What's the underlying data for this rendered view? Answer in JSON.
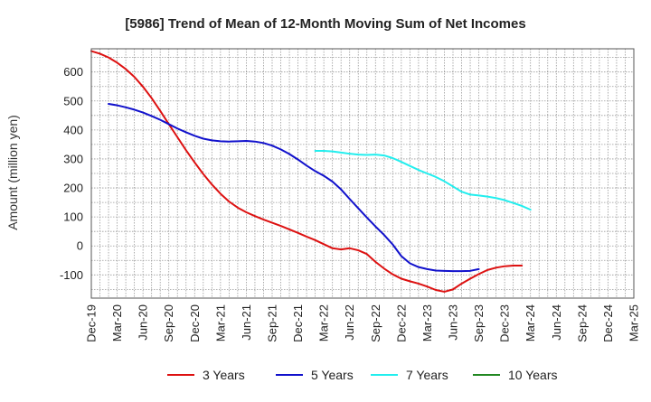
{
  "chart_data": {
    "type": "line",
    "title": "[5986]  Trend of Mean of 12-Month Moving Sum of Net Incomes",
    "xlabel": "",
    "ylabel": "Amount (million yen)",
    "ylim": [
      -180,
      680
    ],
    "yticks": [
      -100,
      0,
      100,
      200,
      300,
      400,
      500,
      600
    ],
    "xlim": [
      0,
      63
    ],
    "xticks": [
      {
        "i": 0,
        "label": "Dec-19"
      },
      {
        "i": 3,
        "label": "Mar-20"
      },
      {
        "i": 6,
        "label": "Jun-20"
      },
      {
        "i": 9,
        "label": "Sep-20"
      },
      {
        "i": 12,
        "label": "Dec-20"
      },
      {
        "i": 15,
        "label": "Mar-21"
      },
      {
        "i": 18,
        "label": "Jun-21"
      },
      {
        "i": 21,
        "label": "Sep-21"
      },
      {
        "i": 24,
        "label": "Dec-21"
      },
      {
        "i": 27,
        "label": "Mar-22"
      },
      {
        "i": 30,
        "label": "Jun-22"
      },
      {
        "i": 33,
        "label": "Sep-22"
      },
      {
        "i": 36,
        "label": "Dec-22"
      },
      {
        "i": 39,
        "label": "Mar-23"
      },
      {
        "i": 42,
        "label": "Jun-23"
      },
      {
        "i": 45,
        "label": "Sep-23"
      },
      {
        "i": 48,
        "label": "Dec-23"
      },
      {
        "i": 51,
        "label": "Mar-24"
      },
      {
        "i": 54,
        "label": "Jun-24"
      },
      {
        "i": 57,
        "label": "Sep-24"
      },
      {
        "i": 60,
        "label": "Dec-24"
      },
      {
        "i": 63,
        "label": "Mar-25"
      }
    ],
    "grid": true,
    "legend_position": "bottom",
    "series": [
      {
        "name": "3 Years",
        "color": "#dd1111",
        "start_index": 0,
        "values": [
          672,
          663,
          650,
          632,
          610,
          583,
          549,
          510,
          466,
          420,
          375,
          330,
          288,
          248,
          212,
          180,
          153,
          132,
          116,
          103,
          91,
          80,
          69,
          57,
          45,
          32,
          20,
          6,
          -8,
          -12,
          -8,
          -15,
          -28,
          -55,
          -78,
          -98,
          -113,
          -122,
          -130,
          -140,
          -152,
          -158,
          -150,
          -130,
          -113,
          -97,
          -83,
          -75,
          -70,
          -68,
          -68
        ]
      },
      {
        "name": "5 Years",
        "color": "#1111cc",
        "start_index": 2,
        "values": [
          490,
          485,
          478,
          470,
          460,
          448,
          435,
          420,
          405,
          392,
          380,
          370,
          364,
          361,
          360,
          361,
          362,
          360,
          355,
          346,
          333,
          317,
          298,
          277,
          258,
          242,
          222,
          195,
          162,
          130,
          98,
          67,
          38,
          5,
          -35,
          -60,
          -73,
          -80,
          -85,
          -86,
          -87,
          -87,
          -86,
          -80
        ]
      },
      {
        "name": "7 Years",
        "color": "#22eeee",
        "start_index": 26,
        "values": [
          328,
          328,
          326,
          322,
          318,
          315,
          314,
          315,
          312,
          303,
          290,
          276,
          262,
          250,
          238,
          223,
          205,
          187,
          177,
          174,
          170,
          165,
          158,
          148,
          138,
          125
        ]
      },
      {
        "name": "10 Years",
        "color": "#228822",
        "start_index": 0,
        "values": []
      }
    ]
  }
}
